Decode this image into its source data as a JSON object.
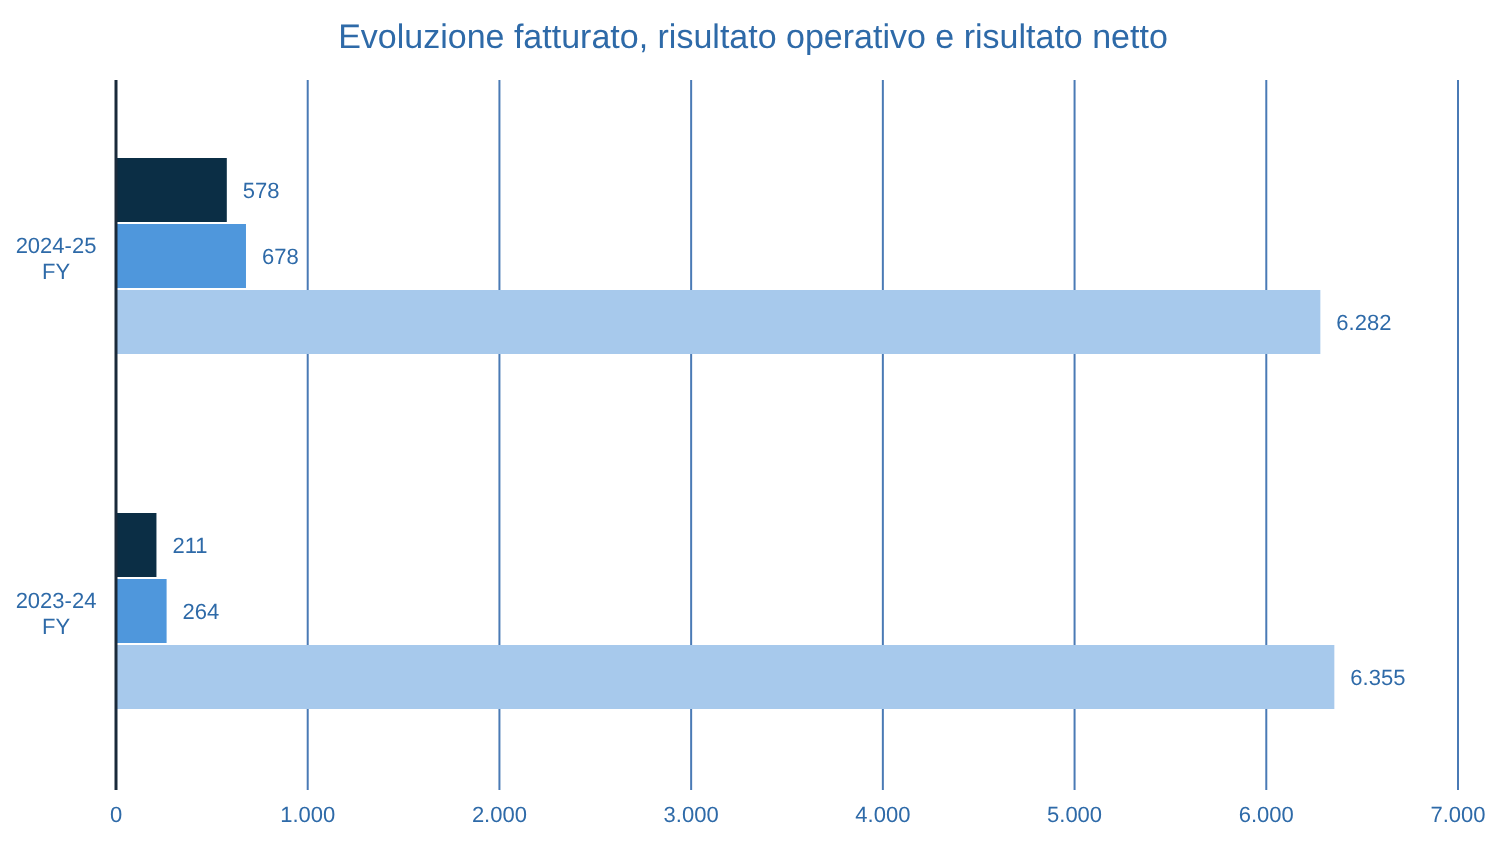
{
  "chart_data": {
    "type": "bar",
    "orientation": "horizontal",
    "title": "Evoluzione fatturato, risultato operativo e risultato netto",
    "categories": [
      "2024-25 FY",
      "2023-24 FY"
    ],
    "series": [
      {
        "color": "#0b2e45",
        "values": [
          578,
          211
        ],
        "value_labels": [
          "578",
          "211"
        ]
      },
      {
        "color": "#4f97dc",
        "values": [
          678,
          264
        ],
        "value_labels": [
          "678",
          "264"
        ]
      },
      {
        "color": "#a7c9ec",
        "values": [
          6282,
          6355
        ],
        "value_labels": [
          "6.282",
          "6.355"
        ]
      }
    ],
    "xlim": [
      0,
      7000
    ],
    "xticks": [
      0,
      {
        "value": 1000,
        "label": "1.000"
      },
      {
        "value": 2000,
        "label": "2.000"
      },
      {
        "value": 3000,
        "label": "3.000"
      },
      {
        "value": 4000,
        "label": "4.000"
      },
      {
        "value": 5000,
        "label": "5.000"
      },
      {
        "value": 6000,
        "label": "6.000"
      },
      {
        "value": 7000,
        "label": "7.000"
      }
    ],
    "grid": "x",
    "legend": false
  }
}
